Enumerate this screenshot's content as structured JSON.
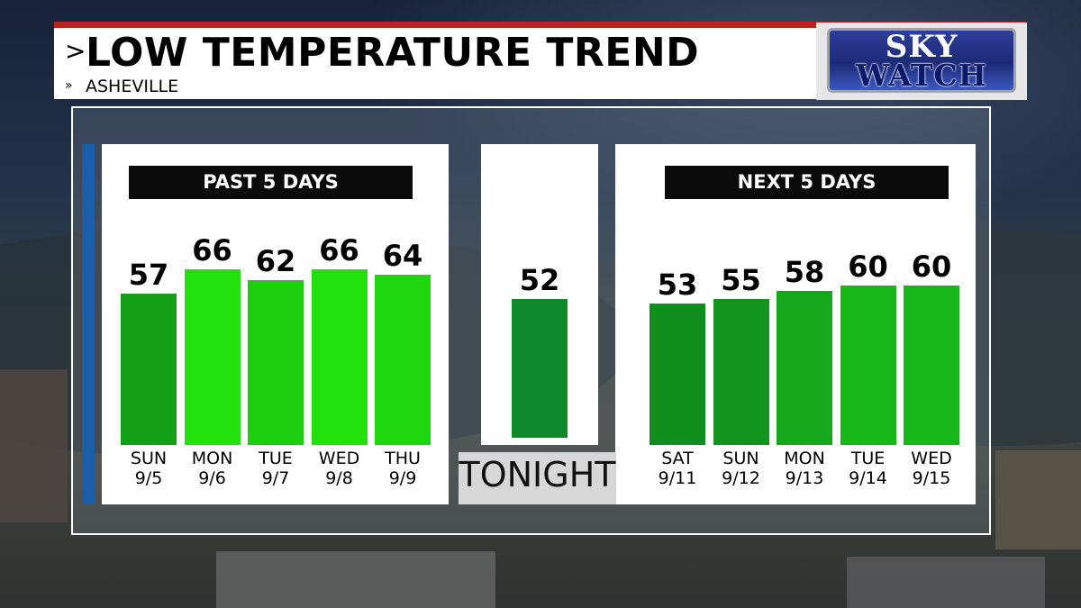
{
  "title": "LOW TEMPERATURE TREND",
  "subtitle": "ASHEVILLE",
  "title_chevron": ">",
  "subtitle_chevron": "»",
  "logo": {
    "line1": "SKY",
    "line2": "WATCH"
  },
  "colors": {
    "header_bg": "#0b0b0b",
    "accent_bar": "#1a5da8",
    "title_red_bar": "#b8231c"
  },
  "chart_data": {
    "type": "bar",
    "title": "LOW TEMPERATURE TREND",
    "subtitle": "ASHEVILLE",
    "ylim": [
      0,
      66
    ],
    "groups": [
      {
        "header": "PAST 5 DAYS",
        "bars": [
          {
            "day": "SUN",
            "date": "9/5",
            "value": 57,
            "color": "#14a016"
          },
          {
            "day": "MON",
            "date": "9/6",
            "value": 66,
            "color": "#22e00c"
          },
          {
            "day": "TUE",
            "date": "9/7",
            "value": 62,
            "color": "#1ccd10"
          },
          {
            "day": "WED",
            "date": "9/8",
            "value": 66,
            "color": "#22e00c"
          },
          {
            "day": "THU",
            "date": "9/9",
            "value": 64,
            "color": "#1ed60e"
          }
        ]
      },
      {
        "header": "",
        "bars": [
          {
            "day": "TONIGHT",
            "date": "",
            "value": 52,
            "color": "#0d8a2a"
          }
        ]
      },
      {
        "header": "NEXT 5 DAYS",
        "bars": [
          {
            "day": "SAT",
            "date": "9/11",
            "value": 53,
            "color": "#108e1e"
          },
          {
            "day": "SUN",
            "date": "9/12",
            "value": 55,
            "color": "#12951c"
          },
          {
            "day": "MON",
            "date": "9/13",
            "value": 58,
            "color": "#14a81a"
          },
          {
            "day": "TUE",
            "date": "9/14",
            "value": 60,
            "color": "#17b718"
          },
          {
            "day": "WED",
            "date": "9/15",
            "value": 60,
            "color": "#17b718"
          }
        ]
      }
    ]
  }
}
